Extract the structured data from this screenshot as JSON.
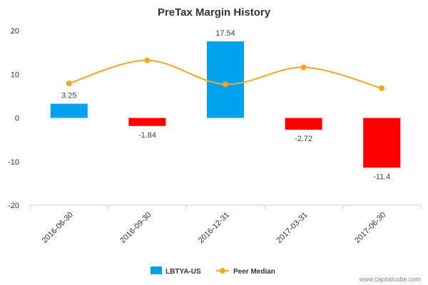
{
  "chart_data": {
    "type": "bar",
    "title": "PreTax Margin History",
    "xlabel": "",
    "ylabel": "",
    "categories": [
      "2016-06-30",
      "2016-09-30",
      "2016-12-31",
      "2017-03-31",
      "2017-06-30"
    ],
    "series": [
      {
        "name": "LBTYA-US",
        "type": "bar",
        "values": [
          3.25,
          -1.84,
          17.54,
          -2.72,
          -11.4
        ],
        "value_labels": [
          "3.25",
          "-1.84",
          "17.54",
          "-2.72",
          "-11.4"
        ],
        "color_positive": "#00a2ed",
        "color_negative": "#ff0000"
      },
      {
        "name": "Peer Median",
        "type": "line",
        "values": [
          7.9,
          13.2,
          7.7,
          11.6,
          6.8
        ],
        "color": "#f5a623"
      }
    ],
    "ylim": [
      -20,
      20
    ],
    "yticks": [
      "20",
      "10",
      "0",
      "-10",
      "-20"
    ],
    "ytick_values": [
      20,
      10,
      0,
      -10,
      -20
    ],
    "grid": false,
    "legend_position": "bottom-center"
  },
  "credit": "www.capitalcube.com"
}
